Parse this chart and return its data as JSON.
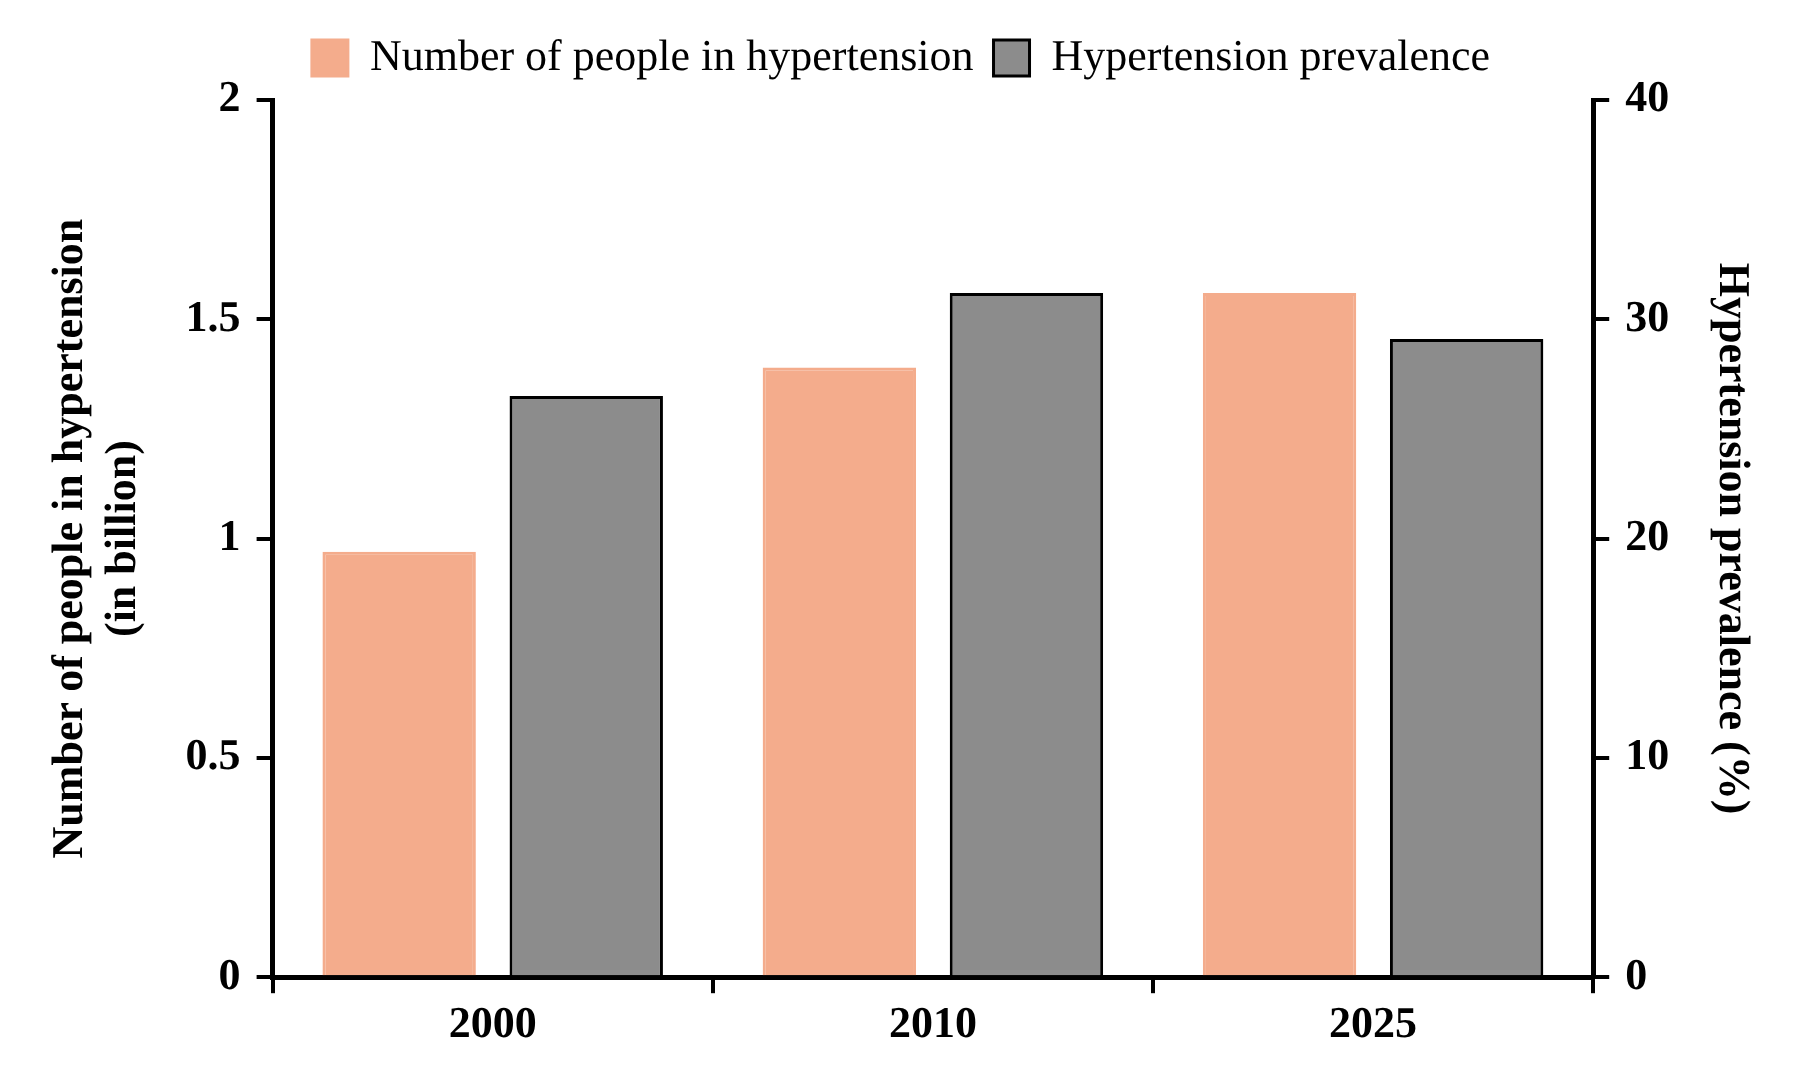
{
  "chart_data": {
    "type": "bar",
    "categories": [
      "2000",
      "2010",
      "2025"
    ],
    "ylabel": "Number of people in hypertension\n(in billion)",
    "y2label": "Hypertension prevalence (%)",
    "series": [
      {
        "name": "Number of people in hypertension",
        "color": "#f4ac8c",
        "values": [
          0.97,
          1.39,
          1.56
        ]
      },
      {
        "name": "Hypertension prevalence",
        "color": "#8c8c8c",
        "values": [
          26.5,
          31.2,
          29.1
        ],
        "axis": "y2"
      }
    ],
    "ylim": [
      0,
      2
    ],
    "yticks": [
      0,
      0.5,
      1,
      1.5,
      2
    ],
    "y2lim": [
      0,
      40
    ],
    "y2ticks": [
      0,
      10,
      20,
      30,
      40
    ],
    "legend": "top",
    "grid": false
  }
}
